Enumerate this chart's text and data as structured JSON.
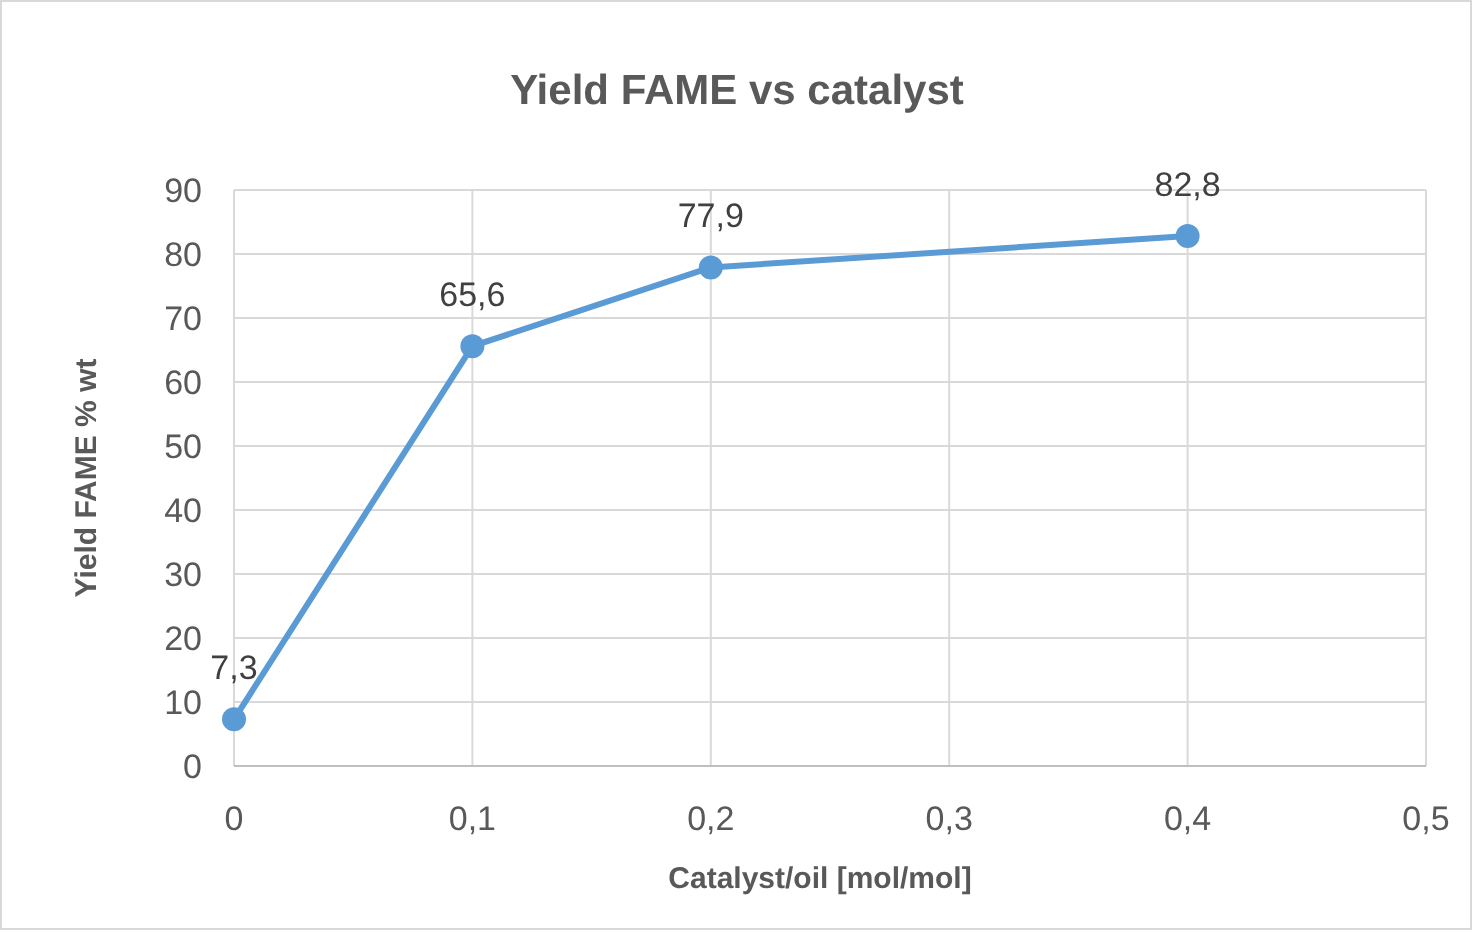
{
  "chart_data": {
    "type": "line",
    "title": "Yield FAME vs catalyst",
    "xlabel": "Catalyst/oil [mol/mol]",
    "ylabel": "Yield FAME % wt",
    "x": [
      0,
      0.1,
      0.2,
      0.4
    ],
    "series": [
      {
        "color": "#5b9bd5",
        "values": [
          7.3,
          65.6,
          77.9,
          82.8
        ],
        "value_labels": [
          "7,3",
          "65,6",
          "77,9",
          "82,8"
        ]
      }
    ],
    "xlim": [
      0,
      0.5
    ],
    "xticks": [
      0,
      {
        "value": 0.1,
        "label": "0,1"
      },
      {
        "value": 0.2,
        "label": "0,2"
      },
      {
        "value": 0.3,
        "label": "0,3"
      },
      {
        "value": 0.4,
        "label": "0,4"
      },
      {
        "value": 0.5,
        "label": "0,5"
      }
    ],
    "ylim": [
      0,
      90
    ],
    "yticks": [
      0,
      10,
      20,
      30,
      40,
      50,
      60,
      70,
      80,
      90
    ],
    "grid": true,
    "marker": "circle",
    "line_style": "solid"
  }
}
